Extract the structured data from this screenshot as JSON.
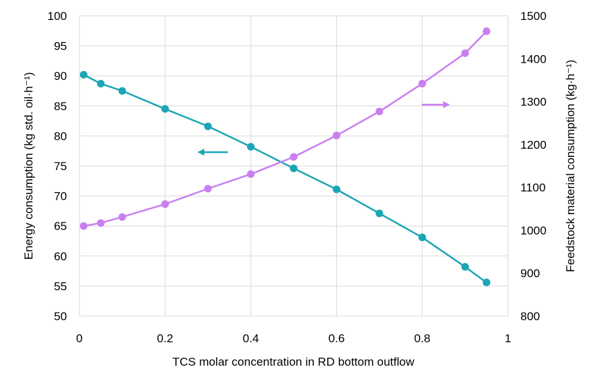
{
  "chart_data": {
    "type": "line",
    "xlabel": "TCS molar concentration in RD bottom outflow",
    "ylabel": "Energy consumption (kg std. oil·h⁻¹)",
    "y2label": "Feedstock material consumption (kg·h⁻¹)",
    "xlim": [
      0,
      1
    ],
    "ylim": [
      50,
      100
    ],
    "y2lim": [
      800,
      1500
    ],
    "grid": true,
    "x_ticks": [
      "0",
      "0.2",
      "0.4",
      "0.6",
      "0.8",
      "1"
    ],
    "y_ticks": [
      "50",
      "55",
      "60",
      "65",
      "70",
      "75",
      "80",
      "85",
      "90",
      "95",
      "100"
    ],
    "y2_ticks": [
      "800",
      "900",
      "1000",
      "1100",
      "1200",
      "1300",
      "1400",
      "1500"
    ],
    "series": [
      {
        "axis": "left",
        "color": "#1BA5B5",
        "x": [
          0.01,
          0.05,
          0.1,
          0.2,
          0.3,
          0.4,
          0.5,
          0.6,
          0.7,
          0.8,
          0.9,
          0.95
        ],
        "values": [
          90.2,
          88.7,
          87.5,
          84.5,
          81.6,
          78.2,
          74.6,
          71.1,
          67.1,
          63.1,
          58.2,
          55.6
        ]
      },
      {
        "axis": "right",
        "color": "#C97FF0",
        "x": [
          0.01,
          0.05,
          0.1,
          0.2,
          0.3,
          0.4,
          0.5,
          0.6,
          0.7,
          0.8,
          0.9,
          0.95
        ],
        "values": [
          1010,
          1017,
          1031,
          1061,
          1097,
          1131,
          1171,
          1221,
          1277,
          1342,
          1413,
          1464
        ]
      }
    ],
    "annotations": [
      {
        "type": "arrow",
        "direction": "left",
        "color": "#1BA5B5",
        "target": "left-axis"
      },
      {
        "type": "arrow",
        "direction": "right",
        "color": "#C97FF0",
        "target": "right-axis"
      }
    ]
  }
}
